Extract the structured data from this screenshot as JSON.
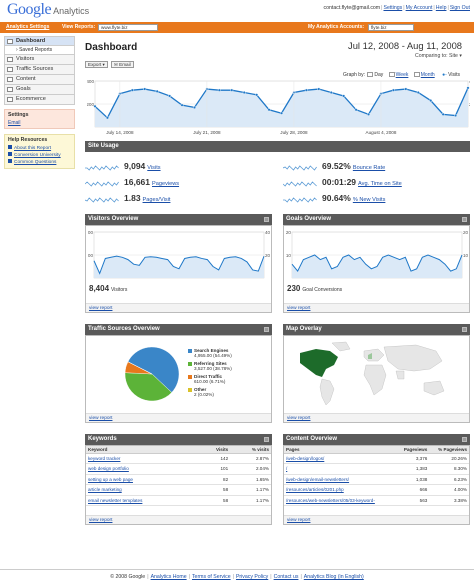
{
  "header": {
    "logo_google": "Google",
    "logo_analytics": "Analytics",
    "user_email": "contact.flyte@gmail.com",
    "links": [
      "Settings",
      "My Account",
      "Help",
      "Sign Out"
    ]
  },
  "orange_bar": {
    "settings_link": "Analytics Settings",
    "view_reports_label": "View Reports:",
    "view_reports_value": "www.flyte.biz",
    "accounts_label": "My Analytics Accounts:",
    "accounts_value": "flyte.biz"
  },
  "sidebar": {
    "items": [
      "Dashboard",
      "Saved Reports",
      "Visitors",
      "Traffic Sources",
      "Content",
      "Goals",
      "Ecommerce"
    ],
    "settings_title": "Settings",
    "settings_link": "Email",
    "help_title": "Help Resources",
    "help_links": [
      "About this Report",
      "Conversion University",
      "Common Questions"
    ]
  },
  "dashboard": {
    "title": "Dashboard",
    "date_range": "Jul 12, 2008 - Aug 11, 2008",
    "comparing_label": "Comparing to:",
    "comparing_value": "Site",
    "export_label": "Export",
    "email_label": "Email",
    "graph_by_label": "Graph by:",
    "graph_by_options": [
      "Day",
      "Week",
      "Month"
    ],
    "metric_label": "Visits"
  },
  "chart_data": [
    {
      "type": "line",
      "name": "main-visits",
      "x": [
        "Jul 12",
        "Jul 13",
        "Jul 14",
        "Jul 15",
        "Jul 16",
        "Jul 17",
        "Jul 18",
        "Jul 19",
        "Jul 20",
        "Jul 21",
        "Jul 22",
        "Jul 23",
        "Jul 24",
        "Jul 25",
        "Jul 26",
        "Jul 27",
        "Jul 28",
        "Jul 29",
        "Jul 30",
        "Jul 31",
        "Aug 1",
        "Aug 2",
        "Aug 3",
        "Aug 4",
        "Aug 5",
        "Aug 6",
        "Aug 7",
        "Aug 8",
        "Aug 9",
        "Aug 10",
        "Aug 11"
      ],
      "values": [
        180,
        80,
        290,
        320,
        330,
        310,
        270,
        190,
        170,
        330,
        320,
        320,
        300,
        280,
        150,
        120,
        300,
        320,
        330,
        300,
        270,
        150,
        110,
        290,
        320,
        330,
        300,
        230,
        110,
        100,
        340
      ],
      "ylim": [
        0,
        400
      ],
      "y_ticks": [
        200,
        400
      ],
      "x_tick_labels": [
        "July 14, 2008",
        "July 21, 2008",
        "July 28, 2008",
        "August 4, 2008"
      ]
    },
    {
      "type": "line",
      "name": "visitors-overview",
      "values": [
        150,
        40,
        170,
        180,
        190,
        180,
        160,
        120,
        110,
        180,
        185,
        180,
        170,
        160,
        100,
        80,
        170,
        180,
        185,
        170,
        160,
        100,
        70,
        170,
        180,
        185,
        170,
        140,
        70,
        60,
        190
      ],
      "ylim": [
        0,
        400
      ],
      "y_ticks": [
        200,
        400
      ]
    },
    {
      "type": "line",
      "name": "goals-overview",
      "values": [
        6,
        3,
        8,
        9,
        10,
        8,
        9,
        4,
        5,
        9,
        10,
        8,
        9,
        6,
        4,
        5,
        9,
        10,
        9,
        8,
        9,
        3,
        4,
        9,
        10,
        9,
        8,
        6,
        3,
        4,
        10
      ],
      "ylim": [
        0,
        20
      ],
      "y_ticks": [
        10,
        20
      ]
    },
    {
      "type": "pie",
      "name": "traffic-sources",
      "labels": [
        "Search Engines",
        "Referring Sites",
        "Direct Traffic",
        "Other"
      ],
      "values": [
        4955,
        3527,
        610,
        2
      ],
      "percents": [
        "54.49%",
        "38.78%",
        "6.71%",
        "0.02%"
      ],
      "colors": [
        "#3a86c8",
        "#5cb338",
        "#e8781c",
        "#d9c22a"
      ]
    }
  ],
  "site_usage": {
    "title": "Site Usage",
    "metrics": [
      {
        "value": "9,094",
        "label": "Visits"
      },
      {
        "value": "16,661",
        "label": "Pageviews"
      },
      {
        "value": "1.83",
        "label": "Pages/Visit"
      },
      {
        "value": "69.52%",
        "label": "Bounce Rate"
      },
      {
        "value": "00:01:29",
        "label": "Avg. Time on Site"
      },
      {
        "value": "90.64%",
        "label": "% New Visits"
      }
    ]
  },
  "visitors_overview": {
    "title": "Visitors Overview",
    "count": "8,404",
    "count_label": "Visitors",
    "link": "view report"
  },
  "goals_overview": {
    "title": "Goals Overview",
    "count": "230",
    "count_label": "Goal Conversions",
    "link": "view report"
  },
  "traffic_sources": {
    "title": "Traffic Sources Overview",
    "items": [
      {
        "name": "Search Engines",
        "detail": "4,955.00 (54.49%)"
      },
      {
        "name": "Referring Sites",
        "detail": "3,527.00 (38.78%)"
      },
      {
        "name": "Direct Traffic",
        "detail": "610.00 (6.71%)"
      },
      {
        "name": "Other",
        "detail": "2 (0.02%)"
      }
    ],
    "link": "view report"
  },
  "map_overlay": {
    "title": "Map Overlay",
    "link": "view report"
  },
  "keywords": {
    "title": "Keywords",
    "headers": [
      "Keyword",
      "Visits",
      "% visits"
    ],
    "rows": [
      [
        "keyword tracker",
        "142",
        "2.87%"
      ],
      [
        "web design portfolio",
        "101",
        "2.04%"
      ],
      [
        "setting up a web page",
        "82",
        "1.65%"
      ],
      [
        "article marketing",
        "58",
        "1.17%"
      ],
      [
        "email newsletter templates",
        "58",
        "1.17%"
      ]
    ],
    "link": "view report"
  },
  "content_overview": {
    "title": "Content Overview",
    "headers": [
      "Pages",
      "Pageviews",
      "% Pageviews"
    ],
    "rows": [
      [
        "/web-design/logos/",
        "3,376",
        "20.26%"
      ],
      [
        "/",
        "1,383",
        "8.30%"
      ],
      [
        "/web-design/email-newsletters/",
        "1,038",
        "6.23%"
      ],
      [
        "/resources/articles/0201.php",
        "666",
        "4.00%"
      ],
      [
        "/resources/web-newsletters/05/03-keyword-",
        "563",
        "3.38%"
      ]
    ],
    "link": "view report"
  },
  "footer": {
    "copyright": "© 2008 Google",
    "links": [
      "Analytics Home",
      "Terms of Service",
      "Privacy Policy",
      "Contact us",
      "Analytics Blog (in English)"
    ]
  },
  "colors": {
    "orange": "#e8781c",
    "line_blue": "#1f78c8",
    "fill_blue": "#dbe9f7",
    "section_gray": "#5a5a5a"
  }
}
